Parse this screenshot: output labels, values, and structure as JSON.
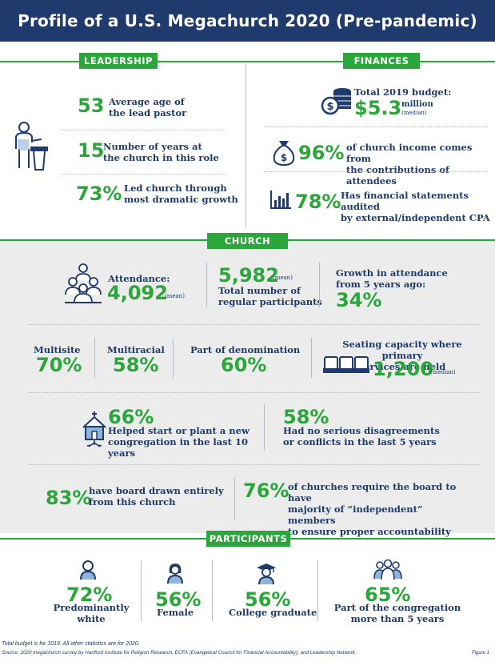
{
  "title": "Profile of a U.S. Megachurch 2020 (Pre-pandemic)",
  "leadership": {
    "label": "LEADERSHIP",
    "items": [
      {
        "stat": "53",
        "text1": "Average age of",
        "text2": "the lead pastor"
      },
      {
        "stat": "15",
        "text1": "Number of years at",
        "text2": "the church in this role"
      },
      {
        "stat": "73%",
        "text1": "Led church through",
        "text2": "most dramatic growth"
      }
    ],
    "icon": "pastor-podium-icon"
  },
  "finances": {
    "label": "FINANCES",
    "budget_label": "Total 2019 budget:",
    "budget_value": "$5.3",
    "budget_unit": "million",
    "budget_note": "(median)",
    "income_stat": "96%",
    "income_text1": "of church income comes from",
    "income_text2": "the contributions of attendees",
    "audit_stat": "78%",
    "audit_text1": "Has financial statements audited",
    "audit_text2": "by external/independent CPA",
    "icons": [
      "coins-icon",
      "money-bag-icon",
      "bar-chart-icon"
    ]
  },
  "church": {
    "label": "CHURCH",
    "attendance_label": "Attendance:",
    "attendance_value": "4,092",
    "attendance_note": "(mean)",
    "participants_value": "5,982",
    "participants_note": "(mean)",
    "participants_text1": "Total number of",
    "participants_text2": "regular participants",
    "growth_text1": "Growth in attendance",
    "growth_text2": "from 5 years ago:",
    "growth_value": "34%",
    "multisite_label": "Multisite",
    "multisite_value": "70%",
    "multiracial_label": "Multiracial",
    "multiracial_value": "58%",
    "denomination_label": "Part of denomination",
    "denomination_value": "60%",
    "seating_text1": "Seating capacity where primary",
    "seating_text2": "services are held",
    "seating_value": "1,200",
    "seating_note": "(median)",
    "plant_value": "66%",
    "plant_text1": "Helped start or plant a new",
    "plant_text2": "congregation in the last 10 years",
    "conflict_value": "58%",
    "conflict_text1": "Had no serious disagreements",
    "conflict_text2": "or conflicts in the last 5 years",
    "board_value": "83%",
    "board_text1": "have board drawn entirely",
    "board_text2": "from this church",
    "indep_value": "76%",
    "indep_text1": "of churches require the board to have",
    "indep_text2": "majority of “independent” members",
    "indep_text3": "to ensure proper accountability"
  },
  "participants": {
    "label": "PARTICIPANTS",
    "items": [
      {
        "value": "72%",
        "text1": "Predominantly",
        "text2": "white"
      },
      {
        "value": "56%",
        "text1": "Female",
        "text2": ""
      },
      {
        "value": "56%",
        "text1": "College graduate",
        "text2": ""
      },
      {
        "value": "65%",
        "text1": "Part of the congregation",
        "text2": "more than 5 years"
      }
    ]
  },
  "footer": {
    "line1": "Total budget is for 2019. All other statistics are for 2020.",
    "line2": "Source: 2020 megachurch survey by Hartford Institute for Religion Research, ECFA (Evangelical Council for Financial Accountability), and Leadership Network.",
    "figure": "Figure 1"
  },
  "colors": {
    "navy": "#1f3a6d",
    "green": "#2aa63a",
    "gray": "#ececec"
  }
}
